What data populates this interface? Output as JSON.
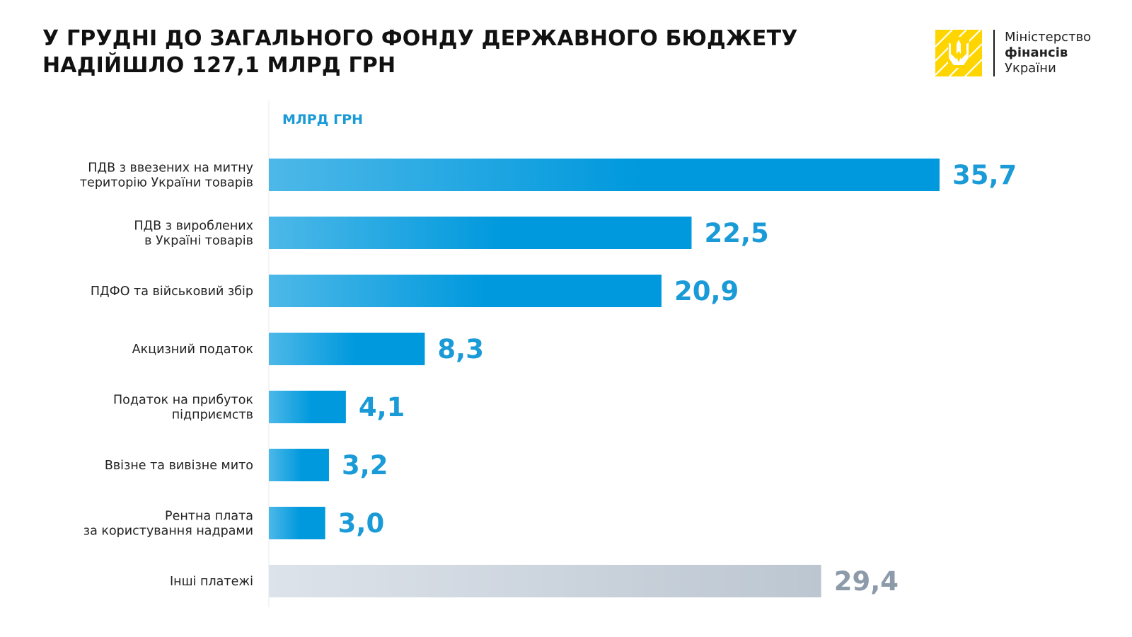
{
  "title_lines": [
    "У ГРУДНІ ДО ЗАГАЛЬНОГО ФОНДУ ДЕРЖАВНОГО БЮДЖЕТУ",
    "НАДІЙШЛО 127,1 МЛРД ГРН"
  ],
  "logo": {
    "line1": "Міністерство",
    "line2": "фінансів",
    "line3": "України",
    "mark_color": "#FFD500",
    "mark_icon": "trident-icon"
  },
  "colors": {
    "bar_start": "#4DB8E8",
    "bar_end": "#0099DD",
    "value_blue": "#1A9BD7",
    "other_start": "#DDE3EA",
    "other_end": "#BCC6D1",
    "value_gray": "#8C9AAA",
    "label": "#222222",
    "axis": "#E6EAEE"
  },
  "chart_data": {
    "type": "bar",
    "orientation": "horizontal",
    "unit_label": "МЛРД ГРН",
    "categories": [
      [
        "ПДВ з ввезених на митну",
        "територію України товарів"
      ],
      [
        "ПДВ з вироблених",
        "в Україні товарів"
      ],
      [
        "ПДФО та військовий збір"
      ],
      [
        "Акцизний податок"
      ],
      [
        "Податок на прибуток",
        "підприємств"
      ],
      [
        "Ввізне та вивізне мито"
      ],
      [
        "Рентна плата",
        "за користування надрами"
      ],
      [
        "Інші платежі"
      ]
    ],
    "values": [
      35.7,
      22.5,
      20.9,
      8.3,
      4.1,
      3.2,
      3.0,
      29.4
    ],
    "value_labels": [
      "35,7",
      "22,5",
      "20,9",
      "8,3",
      "4,1",
      "3,2",
      "3,0",
      "29,4"
    ],
    "highlight": [
      true,
      true,
      true,
      true,
      true,
      true,
      true,
      false
    ],
    "xlim": [
      0,
      35.7
    ]
  }
}
